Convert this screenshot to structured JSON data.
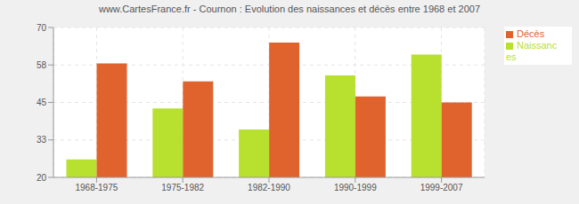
{
  "chart_data": {
    "type": "bar",
    "title": "www.CartesFrance.fr - Cournon : Evolution des naissances et décès entre 1968 et 2007",
    "categories": [
      "1968-1975",
      "1975-1982",
      "1982-1990",
      "1990-1999",
      "1999-2007"
    ],
    "series": [
      {
        "name": "Naissances",
        "color": "#b8e02e",
        "values": [
          26,
          43,
          36,
          54,
          61
        ]
      },
      {
        "name": "Décès",
        "color": "#e0632e",
        "values": [
          58,
          52,
          65,
          47,
          45
        ]
      }
    ],
    "ylim": [
      20,
      70
    ],
    "yticks": [
      20,
      {
        "value": 32.5,
        "label": "33"
      },
      45,
      {
        "value": 57.5,
        "label": "58"
      },
      70
    ],
    "grid": true,
    "legend": "upper right"
  }
}
